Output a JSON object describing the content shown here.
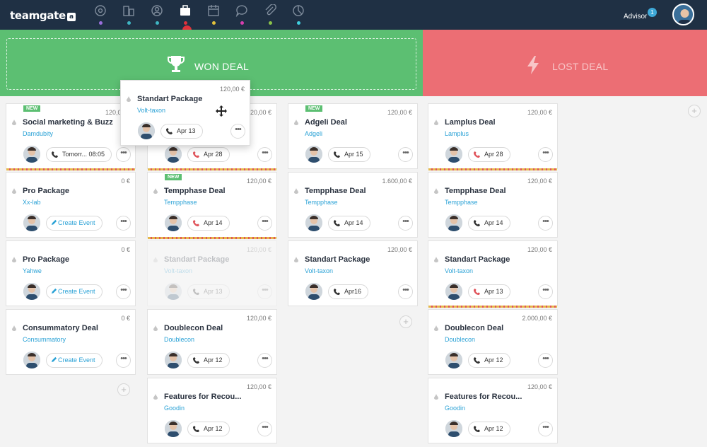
{
  "app": {
    "logo": "teamgate",
    "logo_mark": "a",
    "user_name": "Advisor",
    "notifications": "1"
  },
  "nav": [
    {
      "icon": "target-icon",
      "dot": "#9b6fdd"
    },
    {
      "icon": "buildings-icon",
      "dot": "#3fb6c4"
    },
    {
      "icon": "contacts-icon",
      "dot": "#3fb6c4"
    },
    {
      "icon": "briefcase-icon",
      "dot": "#e0313b"
    },
    {
      "icon": "calendar-icon",
      "dot": "#e3c23b"
    },
    {
      "icon": "chat-icon",
      "dot": "#d63fae"
    },
    {
      "icon": "paperclip-icon",
      "dot": "#8bc34a"
    },
    {
      "icon": "chart-pie-icon",
      "dot": "#3fd0e0"
    }
  ],
  "zones": {
    "won": "WON DEAL",
    "lost": "LOST DEAL"
  },
  "dragged_card": {
    "title": "Standart Package",
    "company": "Volt-taxon",
    "price": "120,00 €",
    "action": "Apr 13"
  },
  "columns": [
    {
      "cards": [
        {
          "title": "Social marketing & Buzz",
          "company": "Damdubity",
          "price": "120,00 €",
          "action": "Tomorr... 08:05",
          "new": "NEW",
          "stripe": "#e6b84a"
        },
        {
          "title": "Pro Package",
          "company": "Xx-lab",
          "price": "0 €",
          "action": "Create Event"
        },
        {
          "title": "Pro Package",
          "company": "Yahwe",
          "price": "0 €",
          "action": "Create Event"
        },
        {
          "title": "Consummatory Deal",
          "company": "Consummatory",
          "price": "0 €",
          "action": "Create Event"
        }
      ]
    },
    {
      "cards": [
        {
          "title": "",
          "company": "",
          "price": "120,00 €",
          "action": "Apr 28",
          "stripe": "#e6b84a"
        },
        {
          "title": "Tempphase Deal",
          "company": "Tempphase",
          "price": "120,00 €",
          "action": "Apr 14",
          "new": "NEW",
          "stripe": "#e6b84a"
        },
        {
          "title": "Standart Package",
          "company": "Volt-taxon",
          "price": "120,00 €",
          "action": "Apr 13"
        },
        {
          "title": "Doublecon Deal",
          "company": "Doublecon",
          "price": "120,00 €",
          "action": "Apr 12"
        },
        {
          "title": "Features for Recou...",
          "company": "Goodin",
          "price": "120,00 €",
          "action": "Apr 12"
        }
      ]
    },
    {
      "cards": [
        {
          "title": "Adgeli Deal",
          "company": "Adgeli",
          "price": "120,00 €",
          "action": "Apr 15",
          "new": "NEW"
        },
        {
          "title": "Tempphase Deal",
          "company": "Tempphase",
          "price": "1.600,00 €",
          "action": "Apr 14"
        },
        {
          "title": "Standart Package",
          "company": "Volt-taxon",
          "price": "120,00 €",
          "action": "Apr16"
        }
      ]
    },
    {
      "cards": [
        {
          "title": "Lamplus Deal",
          "company": "Lamplus",
          "price": "120,00 €",
          "action": "Apr 28",
          "stripe": "#e6b84a"
        },
        {
          "title": "Tempphase Deal",
          "company": "Tempphase",
          "price": "120,00 €",
          "action": "Apr 14"
        },
        {
          "title": "Standart Package",
          "company": "Volt-taxon",
          "price": "120,00 €",
          "action": "Apr 13",
          "stripe": "#e6b84a"
        },
        {
          "title": "Doublecon Deal",
          "company": "Doublecon",
          "price": "2.000,00 €",
          "action": "Apr 12"
        },
        {
          "title": "Features for Recou...",
          "company": "Goodin",
          "price": "120,00 €",
          "action": "Apr 12"
        }
      ]
    }
  ],
  "more_label": "•••",
  "add_label": "+"
}
